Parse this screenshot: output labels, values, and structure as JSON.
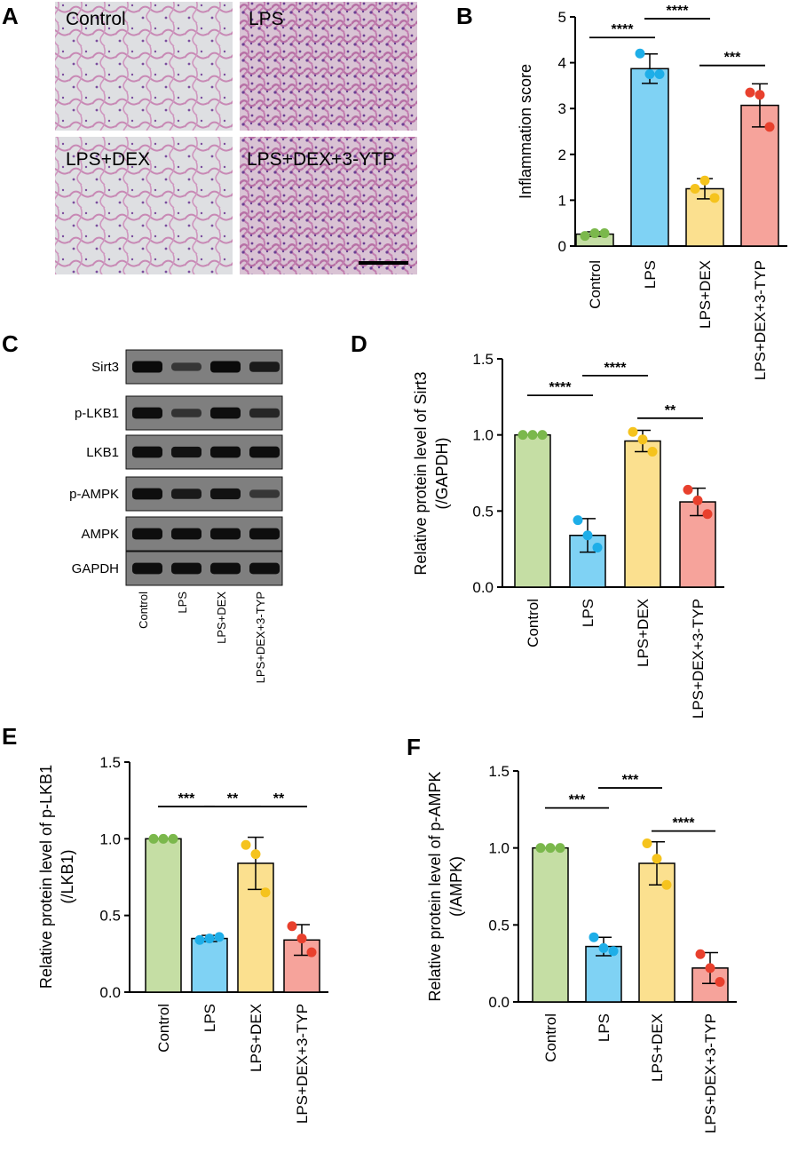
{
  "panels": {
    "A": "A",
    "B": "B",
    "C": "C",
    "D": "D",
    "E": "E",
    "F": "F"
  },
  "histology": {
    "images": [
      "Control",
      "LPS",
      "LPS+DEX",
      "LPS+DEX+3-YTP"
    ]
  },
  "western_blot": {
    "rows": [
      "Sirt3",
      "p-LKB1",
      "LKB1",
      "p-AMPK",
      "AMPK",
      "GAPDH"
    ],
    "lanes": [
      "Control",
      "LPS",
      "LPS+DEX",
      "LPS+DEX+3-TYP"
    ],
    "band_intensity": [
      [
        1.0,
        0.45,
        1.0,
        0.8
      ],
      [
        0.95,
        0.5,
        0.95,
        0.65
      ],
      [
        0.95,
        0.9,
        0.95,
        0.95
      ],
      [
        0.95,
        0.8,
        0.9,
        0.45
      ],
      [
        0.95,
        0.95,
        0.95,
        0.95
      ],
      [
        0.95,
        0.95,
        0.95,
        0.95
      ]
    ]
  },
  "colors": {
    "bars": [
      "#c5dea4",
      "#7fd2f4",
      "#fbe08f",
      "#f6a39b"
    ],
    "dots": [
      "#7bb84c",
      "#1eaee8",
      "#f5c31d",
      "#e8402d"
    ]
  },
  "chart_data": [
    {
      "panel": "B",
      "type": "bar",
      "categories": [
        "Control",
        "LPS",
        "LPS+DEX",
        "LPS+DEX+3-TYP"
      ],
      "ylabel": "Inflammation score",
      "ylim": [
        0,
        5
      ],
      "yticks": [
        0,
        1,
        2,
        3,
        4,
        5
      ],
      "values": [
        0.26,
        3.87,
        1.25,
        3.07
      ],
      "errors": [
        0.05,
        0.32,
        0.22,
        0.47
      ],
      "points": [
        [
          0.22,
          0.28,
          0.28
        ],
        [
          4.2,
          3.75,
          3.75
        ],
        [
          1.25,
          1.43,
          1.05
        ],
        [
          3.35,
          3.3,
          2.6
        ]
      ],
      "significance": [
        {
          "from": 0,
          "to": 1,
          "label": "****",
          "y": 4.55
        },
        {
          "from": 1,
          "to": 2,
          "label": "****",
          "y": 4.96
        },
        {
          "from": 2,
          "to": 3,
          "label": "***",
          "y": 3.94
        }
      ]
    },
    {
      "panel": "D",
      "type": "bar",
      "categories": [
        "Control",
        "LPS",
        "LPS+DEX",
        "LPS+DEX+3-TYP"
      ],
      "ylabel": [
        "Relative protein level of Sirt3",
        "(/GAPDH)"
      ],
      "ylim": [
        0,
        1.5
      ],
      "yticks": [
        "0.0",
        "0.5",
        "1.0",
        "1.5"
      ],
      "values": [
        1.0,
        0.34,
        0.96,
        0.56
      ],
      "errors": [
        0.0,
        0.11,
        0.07,
        0.09
      ],
      "points": [
        [
          1.0,
          1.0,
          1.0
        ],
        [
          0.44,
          0.34,
          0.26
        ],
        [
          1.02,
          0.97,
          0.89
        ],
        [
          0.64,
          0.57,
          0.48
        ]
      ],
      "significance": [
        {
          "from": 0,
          "to": 1,
          "label": "****",
          "y": 1.26
        },
        {
          "from": 1,
          "to": 2,
          "label": "****",
          "y": 1.39
        },
        {
          "from": 2,
          "to": 3,
          "label": "**",
          "y": 1.11
        }
      ]
    },
    {
      "panel": "E",
      "type": "bar",
      "categories": [
        "Control",
        "LPS",
        "LPS+DEX",
        "LPS+DEX+3-TYP"
      ],
      "ylabel": [
        "Relative protein level of p-LKB1",
        "(/LKB1)"
      ],
      "ylim": [
        0,
        1.5
      ],
      "yticks": [
        "0.0",
        "0.5",
        "1.0",
        "1.5"
      ],
      "values": [
        1.0,
        0.35,
        0.84,
        0.34
      ],
      "errors": [
        0.0,
        0.02,
        0.17,
        0.1
      ],
      "points": [
        [
          1.0,
          1.0,
          1.0
        ],
        [
          0.34,
          0.35,
          0.36
        ],
        [
          0.96,
          0.9,
          0.65
        ],
        [
          0.43,
          0.35,
          0.26
        ]
      ],
      "significance": [
        {
          "from": 0,
          "to": 1,
          "label": "***",
          "y": 1.21
        },
        {
          "from": 1,
          "to": 2,
          "label": "**",
          "y": 1.21
        },
        {
          "from": 2,
          "to": 3,
          "label": "**",
          "y": 1.21
        }
      ]
    },
    {
      "panel": "F",
      "type": "bar",
      "categories": [
        "Control",
        "LPS",
        "LPS+DEX",
        "LPS+DEX+3-TYP"
      ],
      "ylabel": [
        "Relative protein level of p-AMPK",
        "(/AMPK)"
      ],
      "ylim": [
        0,
        1.5
      ],
      "yticks": [
        "0.0",
        "0.5",
        "1.0",
        "1.5"
      ],
      "values": [
        1.0,
        0.36,
        0.9,
        0.22
      ],
      "errors": [
        0.0,
        0.06,
        0.14,
        0.1
      ],
      "points": [
        [
          1.0,
          1.0,
          1.0
        ],
        [
          0.42,
          0.35,
          0.33
        ],
        [
          1.03,
          0.93,
          0.76
        ],
        [
          0.31,
          0.22,
          0.13
        ]
      ],
      "significance": [
        {
          "from": 0,
          "to": 1,
          "label": "***",
          "y": 1.26
        },
        {
          "from": 1,
          "to": 2,
          "label": "***",
          "y": 1.39
        },
        {
          "from": 2,
          "to": 3,
          "label": "****",
          "y": 1.11
        }
      ]
    }
  ]
}
